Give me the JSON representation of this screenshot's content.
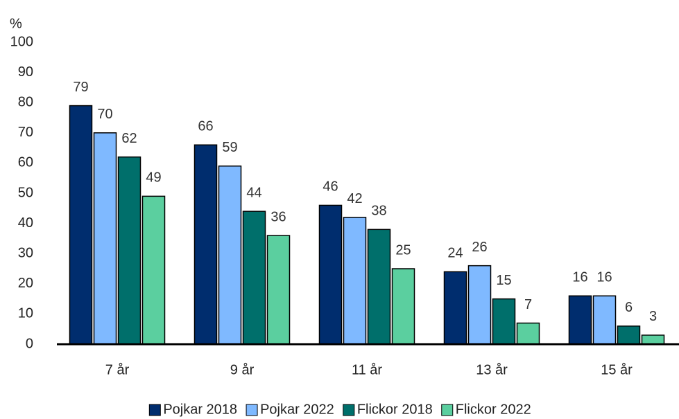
{
  "chart_data": {
    "type": "bar",
    "y_axis_label": "%",
    "categories": [
      "7 år",
      "9 år",
      "11 år",
      "13 år",
      "15 år"
    ],
    "series": [
      {
        "name": "Pojkar 2018",
        "color": "#002d6e",
        "values": [
          79,
          66,
          46,
          24,
          16
        ]
      },
      {
        "name": "Pojkar 2022",
        "color": "#7fb9ff",
        "values": [
          70,
          59,
          42,
          26,
          16
        ]
      },
      {
        "name": "Flickor 2018",
        "color": "#006f6b",
        "values": [
          62,
          44,
          38,
          15,
          6
        ]
      },
      {
        "name": "Flickor 2022",
        "color": "#5bcf9f",
        "values": [
          49,
          36,
          25,
          7,
          3
        ]
      }
    ],
    "ylim": [
      0,
      100
    ],
    "yticks": [
      0,
      10,
      20,
      30,
      40,
      50,
      60,
      70,
      80,
      90,
      100
    ],
    "grid": false,
    "legend": "bottom"
  }
}
